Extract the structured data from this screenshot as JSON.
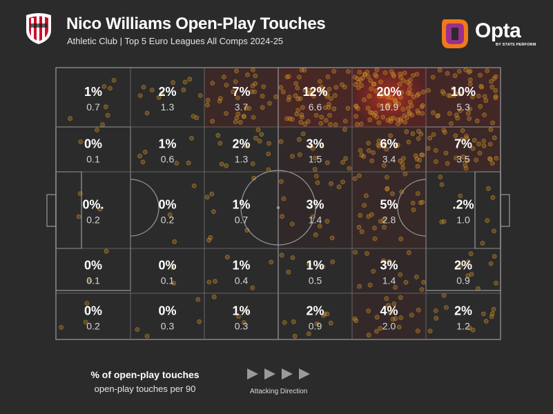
{
  "header": {
    "title": "Nico Williams Open-Play Touches",
    "subtitle": "Athletic Club | Top 5 Euro Leagues All Comps 2024-25"
  },
  "brand": {
    "name": "Opta",
    "sub": "BY STATS PERFORM"
  },
  "legend": {
    "pct_label": "% of open-play touches",
    "avg_label": "open-play touches per 90",
    "direction_label": "Attacking Direction"
  },
  "colors": {
    "background": "#2b2b2b",
    "pitch_lines": "#9a9a9a",
    "dots": "#c8861e",
    "heat_high": "#d42a1e",
    "brand_orange": "#f07a1a",
    "brand_purple": "#9b2f8e"
  },
  "chart_data": {
    "type": "heatmap",
    "title": "Nico Williams Open-Play Touches",
    "attacking_direction": "left-to-right",
    "zones": {
      "rows": 5,
      "columns": 6,
      "pct": [
        [
          "1%",
          "2%",
          "7%",
          "12%",
          "20%",
          "10%"
        ],
        [
          "0%",
          "1%",
          "2%",
          "3%",
          "6%",
          "7%"
        ],
        [
          "0%.",
          "0%",
          "1%",
          "3%",
          "5%",
          ".2%"
        ],
        [
          "0%",
          "0%",
          "1%",
          "1%",
          "3%",
          "2%"
        ],
        [
          "0%",
          "0%",
          "1%",
          "2%",
          "4%",
          "2%"
        ]
      ],
      "per90": [
        [
          "0.7",
          "1.3",
          "3.7",
          "6.6",
          "10.9",
          "5.3"
        ],
        [
          "0.1",
          "0.6",
          "1.3",
          "1.5",
          "3.4",
          "3.5"
        ],
        [
          "0.2",
          "0.2",
          "0.7",
          "1.4",
          "2.8",
          "1.0"
        ],
        [
          "0.1",
          "0.1",
          "0.4",
          "0.5",
          "1.4",
          "0.9"
        ],
        [
          "0.2",
          "0.3",
          "0.3",
          "0.9",
          "2.0",
          "1.2"
        ]
      ]
    }
  }
}
